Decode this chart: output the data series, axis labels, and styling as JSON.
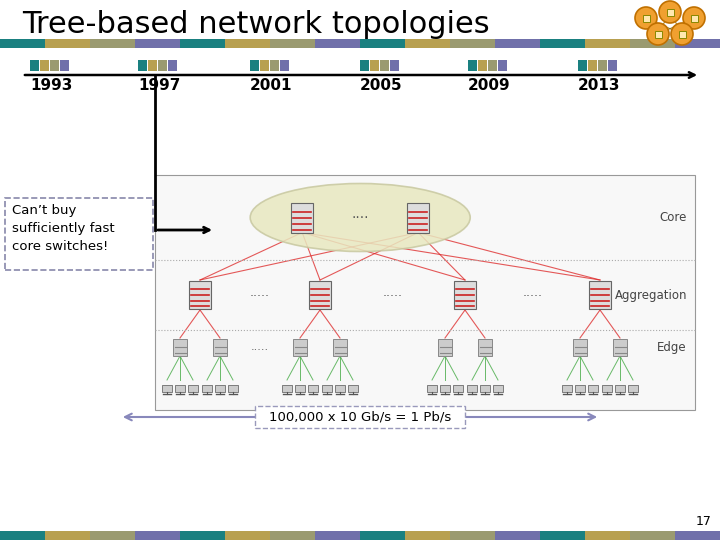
{
  "title": "Tree-based network topologies",
  "title_fontsize": 22,
  "title_color": "#000000",
  "bg_color": "#ffffff",
  "timeline_years": [
    "1993",
    "1997",
    "2001",
    "2005",
    "2009",
    "2013"
  ],
  "bar_colors": [
    "#1a8080",
    "#b8a050",
    "#9a9a70",
    "#7070aa"
  ],
  "cant_buy_text": "Can’t buy\nsufficiently fast\ncore switches!",
  "bandwidth_text": "100,000 x 10 Gb/s = 1 Pb/s",
  "page_number": "17",
  "core_label": "Core",
  "aggregation_label": "Aggregation",
  "edge_label": "Edge",
  "ellipse_color": "#e8e8c0",
  "red_line_color": "#dd2222",
  "green_line_color": "#44aa44",
  "arrow_color": "#8888bb"
}
